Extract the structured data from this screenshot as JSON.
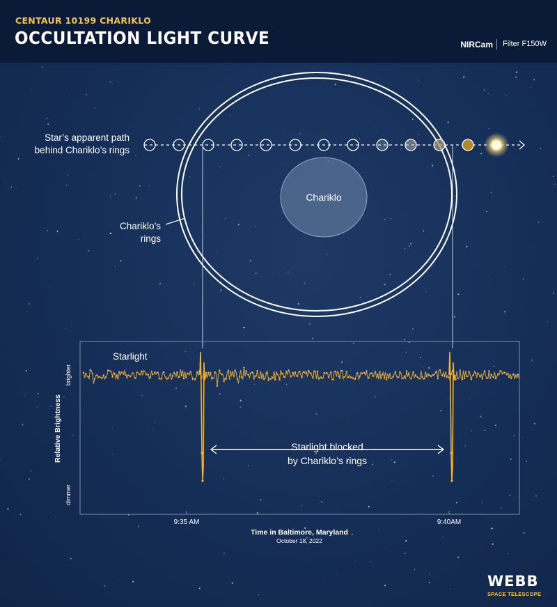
{
  "header": {
    "subtitle": "CENTAUR 10199 CHARIKLO",
    "title": "OCCULTATION LIGHT CURVE",
    "instrument": "NIRCam",
    "filter": "Filter F150W"
  },
  "diagram": {
    "path_label_line1": "Star’s apparent path",
    "path_label_line2": "behind Chariklo’s rings",
    "rings_label_line1": "Chariklo’s",
    "rings_label_line2": "rings",
    "body_label": "Chariklo"
  },
  "chart_data": {
    "type": "line",
    "title": "",
    "xlabel": "Time in Baltimore, Maryland",
    "xlabel_sub": "October 18, 2022",
    "ylabel": "Relative Brightness",
    "y_top_label": "brighter",
    "y_bottom_label": "dimmer",
    "xticks": [
      "9:35 AM",
      "9:40AM"
    ],
    "series": [
      {
        "name": "Starlight",
        "baseline": 1.0,
        "dips": [
          {
            "time": "9:35 AM (approx. 9:35:05)",
            "min": 0.0
          },
          {
            "time": "9:40 AM (approx. 9:40:05)",
            "min": 0.0
          }
        ]
      }
    ],
    "annotation": "Starlight blocked\nby Chariklo’s rings",
    "annotation_line1": "Starlight blocked",
    "annotation_line2": "by Chariklo’s rings",
    "colors": {
      "series": "#f2b233",
      "background": "#14284a"
    }
  },
  "logo": {
    "name": "WEBB",
    "tagline": "SPACE TELESCOPE"
  }
}
